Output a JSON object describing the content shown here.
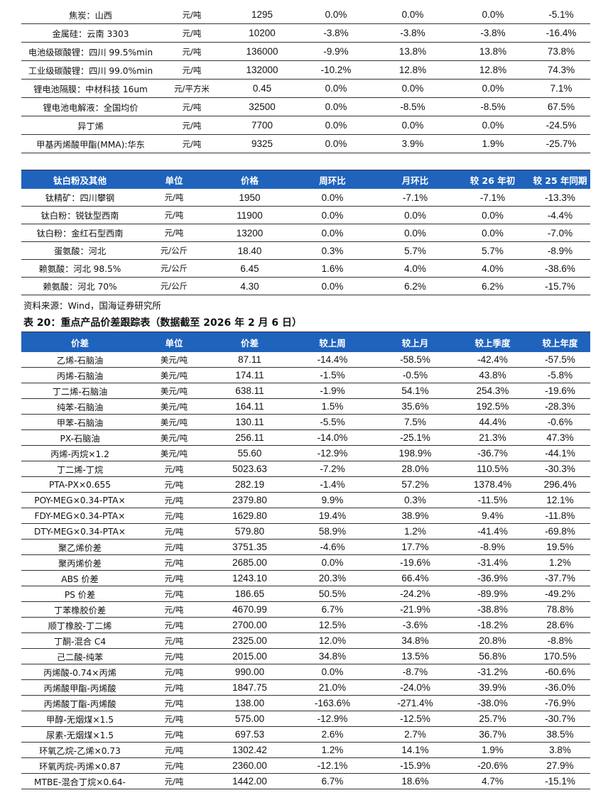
{
  "top_table": {
    "rows": [
      [
        "焦炭：山西",
        "元/吨",
        "1295",
        "0.0%",
        "0.0%",
        "0.0%",
        "-5.1%"
      ],
      [
        "金属硅：云南 3303",
        "元/吨",
        "10200",
        "-3.8%",
        "-3.8%",
        "-3.8%",
        "-16.4%"
      ],
      [
        "电池级碳酸锂：四川 99.5%min",
        "元/吨",
        "136000",
        "-9.9%",
        "13.8%",
        "13.8%",
        "73.8%"
      ],
      [
        "工业级碳酸锂：四川 99.0%min",
        "元/吨",
        "132000",
        "-10.2%",
        "12.8%",
        "12.8%",
        "74.3%"
      ],
      [
        "锂电池隔膜：中材科技 16um",
        "元/平方米",
        "0.45",
        "0.0%",
        "0.0%",
        "0.0%",
        "7.1%"
      ],
      [
        "锂电池电解液：全国均价",
        "元/吨",
        "32500",
        "0.0%",
        "-8.5%",
        "-8.5%",
        "67.5%"
      ],
      [
        "异丁烯",
        "元/吨",
        "7700",
        "0.0%",
        "0.0%",
        "0.0%",
        "-24.5%"
      ],
      [
        "甲基丙烯酸甲酯(MMA):华东",
        "元/吨",
        "9325",
        "0.0%",
        "3.9%",
        "1.9%",
        "-25.7%"
      ]
    ]
  },
  "titanium_table": {
    "headers": [
      "钛白粉及其他",
      "单位",
      "价格",
      "周环比",
      "月环比",
      "较 26 年初",
      "较 25 年同期"
    ],
    "rows": [
      [
        "钛精矿：四川攀钢",
        "元/吨",
        "1950",
        "0.0%",
        "-7.1%",
        "-7.1%",
        "-13.3%"
      ],
      [
        "钛白粉：锐钛型西南",
        "元/吨",
        "11900",
        "0.0%",
        "0.0%",
        "0.0%",
        "-4.4%"
      ],
      [
        "钛白粉：金红石型西南",
        "元/吨",
        "13200",
        "0.0%",
        "0.0%",
        "0.0%",
        "-7.0%"
      ],
      [
        "蛋氨酸：河北",
        "元/公斤",
        "18.40",
        "0.3%",
        "5.7%",
        "5.7%",
        "-8.9%"
      ],
      [
        "赖氨酸：河北 98.5%",
        "元/公斤",
        "6.45",
        "1.6%",
        "4.0%",
        "4.0%",
        "-38.6%"
      ],
      [
        "赖氨酸：河北 70%",
        "元/公斤",
        "4.30",
        "0.0%",
        "6.2%",
        "6.2%",
        "-15.7%"
      ]
    ]
  },
  "source_note": "资料来源：Wind，国海证券研究所",
  "table20_caption": "表 20：重点产品价差跟踪表（数据截至 2026 年 2 月 6 日）",
  "spread_table": {
    "headers": [
      "价差",
      "单位",
      "价差",
      "较上周",
      "较上月",
      "较上季度",
      "较上年度"
    ],
    "rows": [
      [
        "乙烯-石脑油",
        "美元/吨",
        "87.11",
        "-14.4%",
        "-58.5%",
        "-42.4%",
        "-57.5%"
      ],
      [
        "丙烯-石脑油",
        "美元/吨",
        "174.11",
        "-1.5%",
        "-0.5%",
        "43.8%",
        "-5.8%"
      ],
      [
        "丁二烯-石脑油",
        "美元/吨",
        "638.11",
        "-1.9%",
        "54.1%",
        "254.3%",
        "-19.6%"
      ],
      [
        "纯苯-石脑油",
        "美元/吨",
        "164.11",
        "1.5%",
        "35.6%",
        "192.5%",
        "-28.3%"
      ],
      [
        "甲苯-石脑油",
        "美元/吨",
        "130.11",
        "-5.5%",
        "7.5%",
        "44.4%",
        "-0.6%"
      ],
      [
        "PX-石脑油",
        "美元/吨",
        "256.11",
        "-14.0%",
        "-25.1%",
        "21.3%",
        "47.3%"
      ],
      [
        "丙烯-丙烷×1.2",
        "美元/吨",
        "55.60",
        "-12.9%",
        "198.9%",
        "-36.7%",
        "-44.1%"
      ],
      [
        "丁二烯-丁烷",
        "元/吨",
        "5023.63",
        "-7.2%",
        "28.0%",
        "110.5%",
        "-30.3%"
      ],
      [
        "PTA-PX×0.655",
        "元/吨",
        "282.19",
        "-1.4%",
        "57.2%",
        "1378.4%",
        "296.4%"
      ],
      [
        "POY-MEG×0.34-PTA×",
        "元/吨",
        "2379.80",
        "9.9%",
        "0.3%",
        "-11.5%",
        "12.1%"
      ],
      [
        "FDY-MEG×0.34-PTA×",
        "元/吨",
        "1629.80",
        "19.4%",
        "38.9%",
        "9.4%",
        "-11.8%"
      ],
      [
        "DTY-MEG×0.34-PTA×",
        "元/吨",
        "579.80",
        "58.9%",
        "1.2%",
        "-41.4%",
        "-69.8%"
      ],
      [
        "聚乙烯价差",
        "元/吨",
        "3751.35",
        "-4.6%",
        "17.7%",
        "-8.9%",
        "19.5%"
      ],
      [
        "聚丙烯价差",
        "元/吨",
        "2685.00",
        "0.0%",
        "-19.6%",
        "-31.4%",
        "1.2%"
      ],
      [
        "ABS 价差",
        "元/吨",
        "1243.10",
        "20.3%",
        "66.4%",
        "-36.9%",
        "-37.7%"
      ],
      [
        "PS 价差",
        "元/吨",
        "186.65",
        "50.5%",
        "-24.2%",
        "-89.9%",
        "-49.2%"
      ],
      [
        "丁苯橡胶价差",
        "元/吨",
        "4670.99",
        "6.7%",
        "-21.9%",
        "-38.8%",
        "78.8%"
      ],
      [
        "顺丁橡胶-丁二烯",
        "元/吨",
        "2700.00",
        "12.5%",
        "-3.6%",
        "-18.2%",
        "28.6%"
      ],
      [
        "丁酮-混合 C4",
        "元/吨",
        "2325.00",
        "12.0%",
        "34.8%",
        "20.8%",
        "-8.8%"
      ],
      [
        "己二酸-纯苯",
        "元/吨",
        "2015.00",
        "34.8%",
        "13.5%",
        "56.8%",
        "170.5%"
      ],
      [
        "丙烯酸-0.74×丙烯",
        "元/吨",
        "990.00",
        "0.0%",
        "-8.7%",
        "-31.2%",
        "-60.6%"
      ],
      [
        "丙烯酸甲酯-丙烯酸",
        "元/吨",
        "1847.75",
        "21.0%",
        "-24.0%",
        "39.9%",
        "-36.0%"
      ],
      [
        "丙烯酸丁酯-丙烯酸",
        "元/吨",
        "138.00",
        "-163.6%",
        "-271.4%",
        "-38.0%",
        "-76.9%"
      ],
      [
        "甲醇-无烟煤×1.5",
        "元/吨",
        "575.00",
        "-12.9%",
        "-12.5%",
        "25.7%",
        "-30.7%"
      ],
      [
        "尿素-无烟煤×1.5",
        "元/吨",
        "697.53",
        "2.6%",
        "2.7%",
        "36.7%",
        "38.5%"
      ],
      [
        "环氧乙烷-乙烯×0.73",
        "元/吨",
        "1302.42",
        "1.2%",
        "14.1%",
        "1.9%",
        "3.8%"
      ],
      [
        "环氧丙烷-丙烯×0.87",
        "元/吨",
        "2360.00",
        "-12.1%",
        "-15.9%",
        "-20.6%",
        "27.9%"
      ],
      [
        "MTBE-混合丁烷×0.64-",
        "元/吨",
        "1442.00",
        "6.7%",
        "18.6%",
        "4.7%",
        "-15.1%"
      ]
    ]
  },
  "colors": {
    "header_bg": "#1f63bd",
    "header_text": "#ffffff"
  }
}
